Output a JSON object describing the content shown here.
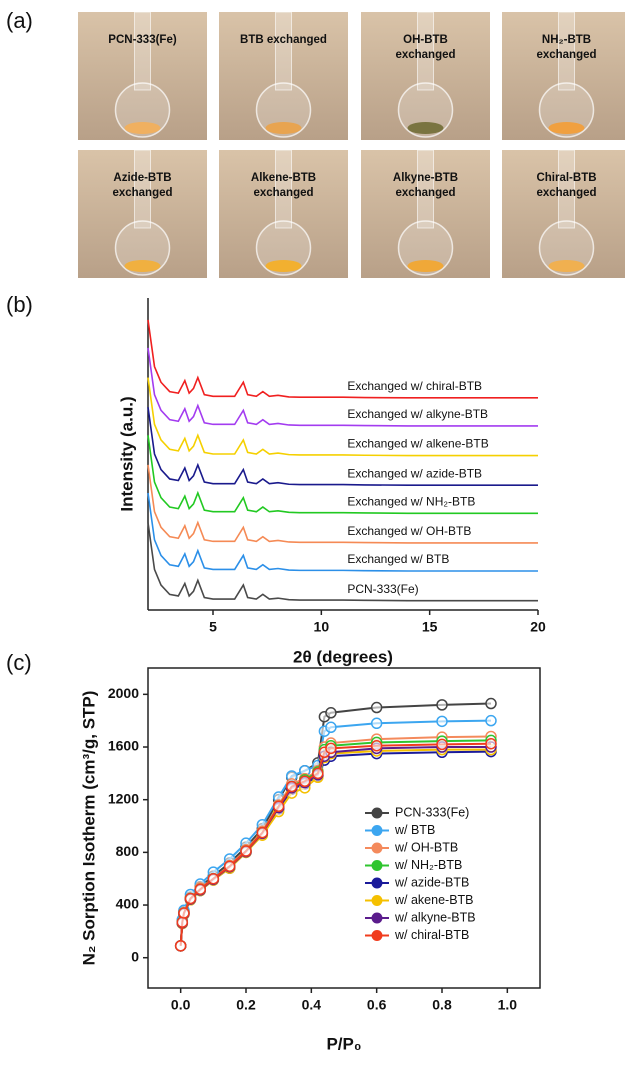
{
  "panel_labels": [
    "(a)",
    "(b)",
    "(c)"
  ],
  "photos": [
    {
      "caption": [
        "PCN-333(Fe)"
      ]
    },
    {
      "caption": [
        "BTB exchanged"
      ]
    },
    {
      "caption": [
        "OH-BTB",
        "exchanged"
      ]
    },
    {
      "caption": [
        "NH₂-BTB",
        "exchanged"
      ]
    },
    {
      "caption": [
        "Azide-BTB",
        "exchanged"
      ]
    },
    {
      "caption": [
        "Alkene-BTB",
        "exchanged"
      ]
    },
    {
      "caption": [
        "Alkyne-BTB",
        "exchanged"
      ]
    },
    {
      "caption": [
        "Chiral-BTB",
        "exchanged"
      ]
    }
  ],
  "chart_data": [
    {
      "type": "line",
      "xlabel": "2θ (degrees)",
      "ylabel": "Intensity (a.u.)",
      "xlim": [
        2,
        20
      ],
      "xticks": [
        5,
        10,
        15,
        20
      ],
      "ylim": [
        0,
        10
      ],
      "x": [
        2,
        2.3,
        2.6,
        3,
        3.4,
        3.7,
        3.9,
        4.1,
        4.3,
        4.6,
        5,
        6,
        6.4,
        6.6,
        7,
        7.3,
        7.6,
        8,
        8.5,
        9,
        10,
        11,
        12,
        14,
        17,
        20
      ],
      "series": [
        {
          "name": "PCN-333(Fe)",
          "color": "#4a4a4a",
          "values": [
            2.8,
            1.3,
            0.8,
            0.5,
            0.45,
            0.85,
            0.45,
            0.6,
            0.95,
            0.4,
            0.35,
            0.35,
            0.8,
            0.4,
            0.35,
            0.5,
            0.35,
            0.38,
            0.33,
            0.32,
            0.32,
            0.32,
            0.31,
            0.3,
            0.3,
            0.3
          ]
        },
        {
          "name": "Exchanged w/ BTB",
          "color": "#2b8fe8",
          "values": [
            3.75,
            2.25,
            1.75,
            1.45,
            1.4,
            1.8,
            1.4,
            1.55,
            1.9,
            1.35,
            1.3,
            1.3,
            1.75,
            1.35,
            1.3,
            1.45,
            1.3,
            1.33,
            1.28,
            1.27,
            1.27,
            1.27,
            1.26,
            1.25,
            1.25,
            1.25
          ]
        },
        {
          "name": "Exchanged w/ OH-BTB",
          "color": "#f58a55",
          "values": [
            4.65,
            3.15,
            2.65,
            2.35,
            2.3,
            2.7,
            2.3,
            2.45,
            2.8,
            2.25,
            2.2,
            2.2,
            2.65,
            2.25,
            2.2,
            2.35,
            2.2,
            2.23,
            2.18,
            2.17,
            2.17,
            2.17,
            2.16,
            2.15,
            2.15,
            2.15
          ]
        },
        {
          "name": "Exchanged w/ NH₂-BTB",
          "color": "#22c922",
          "values": [
            5.6,
            4.1,
            3.6,
            3.3,
            3.25,
            3.65,
            3.25,
            3.4,
            3.75,
            3.2,
            3.15,
            3.15,
            3.6,
            3.2,
            3.15,
            3.3,
            3.15,
            3.18,
            3.13,
            3.12,
            3.12,
            3.12,
            3.11,
            3.1,
            3.1,
            3.1
          ]
        },
        {
          "name": "Exchanged w/ azide-BTB",
          "color": "#1a1a8c",
          "values": [
            6.5,
            5,
            4.5,
            4.2,
            4.15,
            4.55,
            4.15,
            4.3,
            4.65,
            4.1,
            4.05,
            4.05,
            4.5,
            4.1,
            4.05,
            4.2,
            4.05,
            4.08,
            4.03,
            4.02,
            4.02,
            4.02,
            4.01,
            4,
            4,
            4
          ]
        },
        {
          "name": "Exchanged w/ alkene-BTB",
          "color": "#f5d000",
          "values": [
            7.45,
            5.95,
            5.45,
            5.15,
            5.1,
            5.5,
            5.1,
            5.25,
            5.6,
            5.05,
            5,
            5,
            5.45,
            5.05,
            5,
            5.15,
            5,
            5.03,
            4.98,
            4.97,
            4.97,
            4.97,
            4.96,
            4.95,
            4.95,
            4.95
          ]
        },
        {
          "name": "Exchanged w/ alkyne-BTB",
          "color": "#a33cf0",
          "values": [
            8.4,
            6.9,
            6.4,
            6.1,
            6.05,
            6.45,
            6.05,
            6.2,
            6.55,
            6,
            5.95,
            5.95,
            6.4,
            6,
            5.95,
            6.1,
            5.95,
            5.98,
            5.93,
            5.92,
            5.92,
            5.92,
            5.91,
            5.9,
            5.9,
            5.9
          ]
        },
        {
          "name": "Exchanged w/ chiral-BTB",
          "color": "#f02020",
          "values": [
            9.3,
            7.8,
            7.3,
            7,
            6.95,
            7.35,
            6.95,
            7.1,
            7.45,
            6.9,
            6.85,
            6.85,
            7.3,
            6.9,
            6.85,
            7,
            6.85,
            6.88,
            6.83,
            6.82,
            6.82,
            6.82,
            6.81,
            6.8,
            6.8,
            6.8
          ]
        }
      ]
    },
    {
      "type": "scatter",
      "xlabel": "P/P₀",
      "ylabel": "N₂ Sorption Isotherm (cm³/g, STP)",
      "xlim": [
        -0.1,
        1.1
      ],
      "xticks": [
        {
          "value": 0,
          "label": "0.0"
        },
        {
          "value": 0.2,
          "label": "0.2"
        },
        {
          "value": 0.4,
          "label": "0.4"
        },
        {
          "value": 0.6,
          "label": "0.6"
        },
        {
          "value": 0.8,
          "label": "0.8"
        },
        {
          "value": 1,
          "label": "1.0"
        }
      ],
      "ylim": [
        -230,
        2200
      ],
      "yticks": [
        0,
        400,
        800,
        1200,
        1600,
        2000
      ],
      "legend": "center right",
      "x": [
        0,
        0.005,
        0.01,
        0.03,
        0.06,
        0.1,
        0.15,
        0.2,
        0.25,
        0.3,
        0.34,
        0.38,
        0.42,
        0.44,
        0.46,
        0.6,
        0.8,
        0.95
      ],
      "series": [
        {
          "name": "PCN-333(Fe)",
          "color": "#444444",
          "values": [
            90,
            280,
            350,
            460,
            540,
            620,
            720,
            840,
            980,
            1200,
            1370,
            1420,
            1480,
            1830,
            1860,
            1900,
            1920,
            1930
          ]
        },
        {
          "name": "w/ BTB",
          "color": "#3ca6f0",
          "values": [
            90,
            290,
            360,
            480,
            560,
            650,
            750,
            870,
            1010,
            1220,
            1380,
            1420,
            1460,
            1720,
            1750,
            1780,
            1795,
            1800
          ]
        },
        {
          "name": "w/ OH-BTB",
          "color": "#f48a5c",
          "values": [
            90,
            270,
            340,
            450,
            530,
            600,
            700,
            820,
            960,
            1160,
            1320,
            1360,
            1420,
            1600,
            1630,
            1660,
            1675,
            1680
          ]
        },
        {
          "name": "w/ NH₂-BTB",
          "color": "#2fc52f",
          "values": [
            90,
            270,
            340,
            450,
            520,
            600,
            690,
            810,
            950,
            1150,
            1300,
            1350,
            1410,
            1580,
            1610,
            1635,
            1645,
            1650
          ]
        },
        {
          "name": "w/ azide-BTB",
          "color": "#1a1a9a",
          "values": [
            90,
            260,
            330,
            440,
            510,
            590,
            680,
            800,
            940,
            1130,
            1280,
            1320,
            1380,
            1500,
            1530,
            1550,
            1560,
            1565
          ]
        },
        {
          "name": "w/ akene-BTB",
          "color": "#f5c000",
          "values": [
            90,
            260,
            330,
            440,
            510,
            590,
            680,
            800,
            930,
            1110,
            1250,
            1290,
            1370,
            1520,
            1550,
            1570,
            1580,
            1580
          ]
        },
        {
          "name": "w/ alkyne-BTB",
          "color": "#5b1c8c",
          "values": [
            90,
            265,
            335,
            445,
            515,
            595,
            690,
            805,
            945,
            1140,
            1290,
            1330,
            1390,
            1530,
            1560,
            1590,
            1600,
            1600
          ]
        },
        {
          "name": "w/ chiral-BTB",
          "color": "#f03c1e",
          "values": [
            90,
            270,
            340,
            450,
            520,
            600,
            695,
            810,
            950,
            1150,
            1300,
            1340,
            1400,
            1560,
            1590,
            1610,
            1620,
            1625
          ]
        }
      ]
    }
  ]
}
